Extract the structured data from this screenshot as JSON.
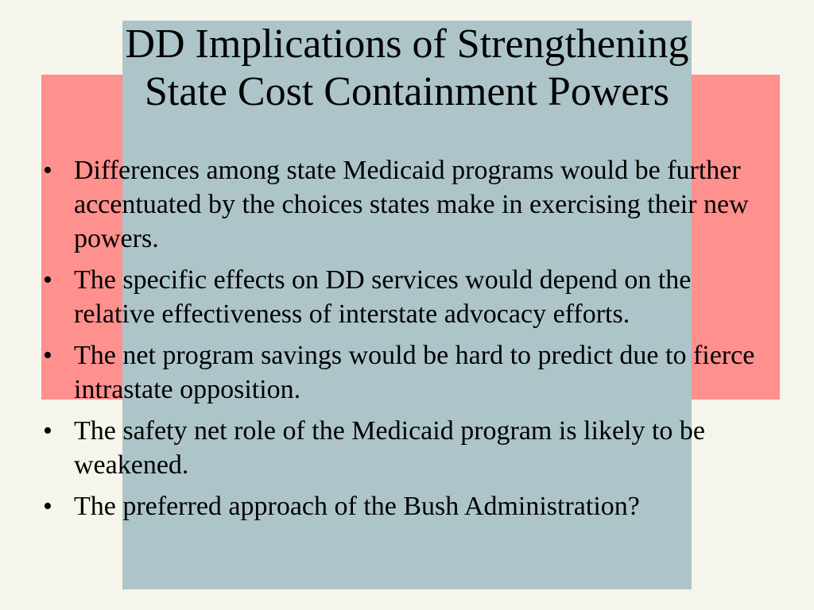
{
  "slide": {
    "background_color": "#f6f5eb",
    "decoration": {
      "red_block_color": "#fe908e",
      "blue_block_color": "#adc5c9"
    },
    "title_lines": [
      "DD Implications of Strengthening",
      "State Cost Containment Powers"
    ],
    "bullet_symbol": "•",
    "bullets": [
      "Differences among state Medicaid programs would be further accentuated by the choices states make in exercising their new powers.",
      "The specific effects on DD services would depend on the relative effectiveness of interstate advocacy efforts.",
      "The net program savings would be hard to predict due to fierce intrastate opposition.",
      "The safety net role of the Medicaid program is likely to be weakened.",
      "The preferred approach of the Bush Administration?"
    ]
  }
}
